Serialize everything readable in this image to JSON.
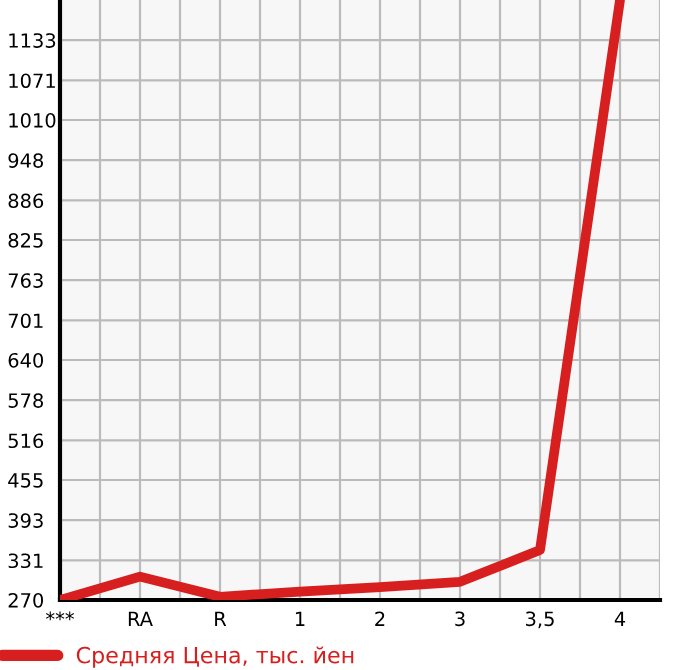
{
  "chart_data": {
    "type": "line",
    "categories": [
      "***",
      "RA",
      "R",
      "1",
      "2",
      "3",
      "3,5",
      "4"
    ],
    "series": [
      {
        "name": "Средняя Цена, тыс. йен",
        "color": "#d71f1f",
        "values": [
          270,
          306,
          275,
          283,
          290,
          298,
          347,
          1195
        ]
      }
    ],
    "ylim": [
      270,
      1195
    ],
    "yticks": [
      270,
      331,
      393,
      455,
      516,
      578,
      640,
      701,
      763,
      825,
      886,
      948,
      1010,
      1071,
      1133
    ],
    "grid": true,
    "legend": "bottom",
    "marker": "none",
    "line_style": "solid"
  }
}
